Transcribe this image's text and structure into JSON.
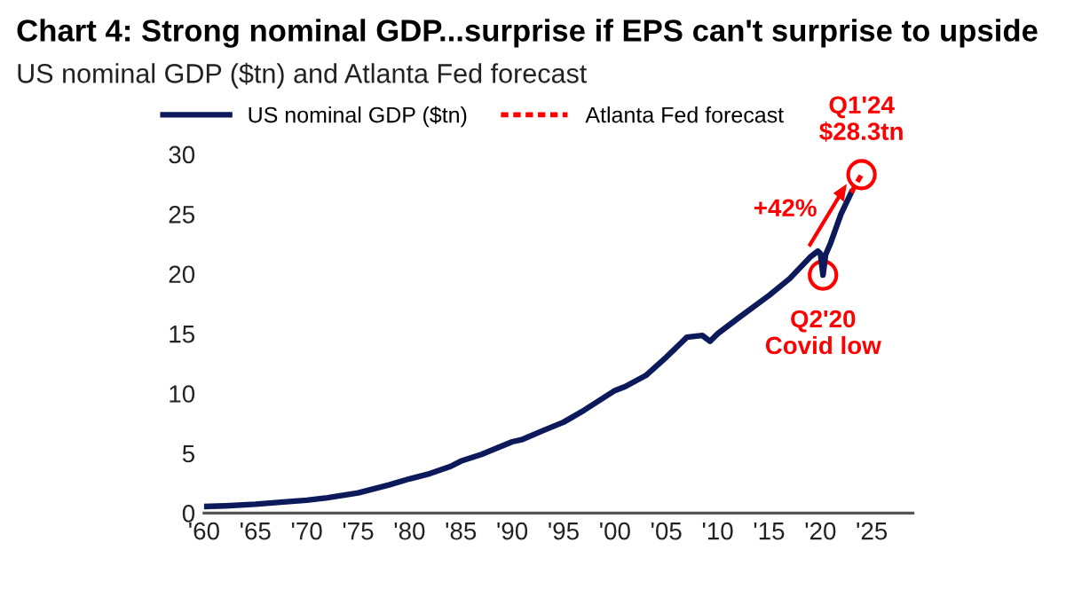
{
  "chart_data": {
    "type": "line",
    "title": "Chart 4: Strong nominal GDP...surprise if EPS can't surprise to upside",
    "subtitle": "US nominal GDP ($tn) and Atlanta Fed forecast",
    "series": [
      {
        "name": "US nominal GDP ($tn)",
        "color": "#0c1a5c",
        "line_style": "solid",
        "x": [
          1960,
          1962,
          1965,
          1968,
          1970,
          1972,
          1975,
          1978,
          1980,
          1982,
          1984,
          1985,
          1987,
          1990,
          1991,
          1993,
          1995,
          1997,
          2000,
          2001,
          2003,
          2005,
          2007,
          2008.5,
          2009.25,
          2010,
          2012,
          2015,
          2017,
          2019,
          2019.75,
          2020,
          2020.25,
          2020.5,
          2021,
          2022,
          2023
        ],
        "values": [
          0.54,
          0.6,
          0.74,
          0.94,
          1.07,
          1.28,
          1.68,
          2.35,
          2.86,
          3.3,
          3.9,
          4.34,
          4.9,
          5.96,
          6.16,
          6.9,
          7.6,
          8.6,
          10.25,
          10.58,
          11.5,
          13.04,
          14.7,
          14.85,
          14.36,
          15.0,
          16.3,
          18.2,
          19.6,
          21.4,
          21.9,
          21.7,
          19.9,
          21.6,
          22.6,
          25.0,
          26.8
        ]
      },
      {
        "name": "Atlanta Fed forecast",
        "color": "#ff0000",
        "line_style": "dotted",
        "x": [
          2023,
          2024
        ],
        "values": [
          26.8,
          28.3
        ]
      }
    ],
    "xlim": [
      1960,
      2029
    ],
    "ylim": [
      0,
      30
    ],
    "xticks": [
      {
        "value": 1960,
        "label": "'60"
      },
      {
        "value": 1965,
        "label": "'65"
      },
      {
        "value": 1970,
        "label": "'70"
      },
      {
        "value": 1975,
        "label": "'75"
      },
      {
        "value": 1980,
        "label": "'80"
      },
      {
        "value": 1985,
        "label": "'85"
      },
      {
        "value": 1990,
        "label": "'90"
      },
      {
        "value": 1995,
        "label": "'95"
      },
      {
        "value": 2000,
        "label": "'00"
      },
      {
        "value": 2005,
        "label": "'05"
      },
      {
        "value": 2010,
        "label": "'10"
      },
      {
        "value": 2015,
        "label": "'15"
      },
      {
        "value": 2020,
        "label": "'20"
      },
      {
        "value": 2025,
        "label": "'25"
      }
    ],
    "yticks": [
      0,
      5,
      10,
      15,
      20,
      25,
      30
    ],
    "annotations": [
      {
        "text": "Q2'20\nCovid low",
        "x": 2020.25,
        "y": 19.9
      },
      {
        "text": "Q1'24\n$28.3tn",
        "x": 2024,
        "y": 28.3
      },
      "+42%"
    ],
    "grid": false,
    "legend": "top"
  }
}
